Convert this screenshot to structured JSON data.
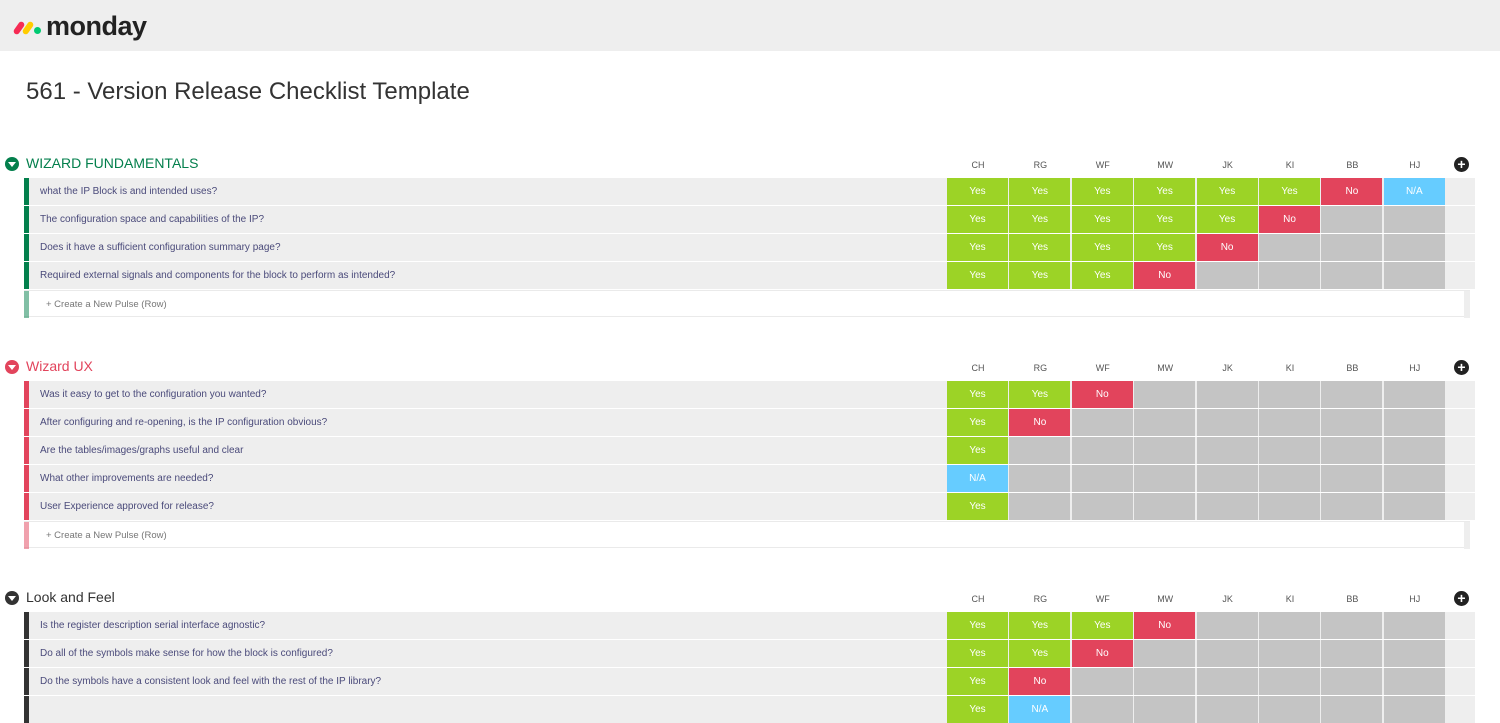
{
  "app": {
    "logo_text": "monday"
  },
  "page": {
    "title": "561 - Version Release Checklist Template"
  },
  "columns": [
    "CH",
    "RG",
    "WF",
    "MW",
    "JK",
    "KI",
    "BB",
    "HJ"
  ],
  "add_column_icon": "plus-circle-icon",
  "status_colors": {
    "Yes": "#9cd326",
    "No": "#e2445c",
    "N/A": "#66ccff",
    "empty": "#c4c4c4"
  },
  "groups": [
    {
      "title": "WIZARD FUNDAMENTALS",
      "color": "#037f4c",
      "rows": [
        {
          "label": "what the IP Block is and intended uses?",
          "values": [
            "Yes",
            "Yes",
            "Yes",
            "Yes",
            "Yes",
            "Yes",
            "No",
            "N/A"
          ]
        },
        {
          "label": "The configuration space and capabilities of the IP?",
          "values": [
            "Yes",
            "Yes",
            "Yes",
            "Yes",
            "Yes",
            "No",
            "",
            ""
          ]
        },
        {
          "label": "Does it have a sufficient configuration summary page?",
          "values": [
            "Yes",
            "Yes",
            "Yes",
            "Yes",
            "No",
            "",
            "",
            ""
          ]
        },
        {
          "label": "Required external signals and components for the block to perform as intended?",
          "values": [
            "Yes",
            "Yes",
            "Yes",
            "No",
            "",
            "",
            "",
            ""
          ]
        }
      ],
      "create_label": "+ Create a New Pulse (Row)"
    },
    {
      "title": "Wizard UX",
      "color": "#e2445c",
      "rows": [
        {
          "label": "Was it easy to get to the configuration you wanted?",
          "values": [
            "Yes",
            "Yes",
            "No",
            "",
            "",
            "",
            "",
            ""
          ]
        },
        {
          "label": "After configuring and re-opening, is the IP configuration obvious?",
          "values": [
            "Yes",
            "No",
            "",
            "",
            "",
            "",
            "",
            ""
          ]
        },
        {
          "label": "Are the tables/images/graphs useful and clear",
          "values": [
            "Yes",
            "",
            "",
            "",
            "",
            "",
            "",
            ""
          ]
        },
        {
          "label": "What other improvements are needed?",
          "values": [
            "N/A",
            "",
            "",
            "",
            "",
            "",
            "",
            ""
          ]
        },
        {
          "label": "User Experience approved for release?",
          "values": [
            "Yes",
            "",
            "",
            "",
            "",
            "",
            "",
            ""
          ]
        }
      ],
      "create_label": "+ Create a New Pulse (Row)"
    },
    {
      "title": "Look and Feel",
      "color": "#333333",
      "rows": [
        {
          "label": "Is the register description serial interface agnostic?",
          "values": [
            "Yes",
            "Yes",
            "Yes",
            "No",
            "",
            "",
            "",
            ""
          ]
        },
        {
          "label": "Do all of the symbols make sense for how the block is configured?",
          "values": [
            "Yes",
            "Yes",
            "No",
            "",
            "",
            "",
            "",
            ""
          ]
        },
        {
          "label": "Do the symbols have a consistent look and feel with the rest of the IP library?",
          "values": [
            "Yes",
            "No",
            "",
            "",
            "",
            "",
            "",
            ""
          ]
        },
        {
          "label": "",
          "values": [
            "Yes",
            "N/A",
            "",
            "",
            "",
            "",
            "",
            ""
          ]
        }
      ],
      "create_label": ""
    }
  ]
}
